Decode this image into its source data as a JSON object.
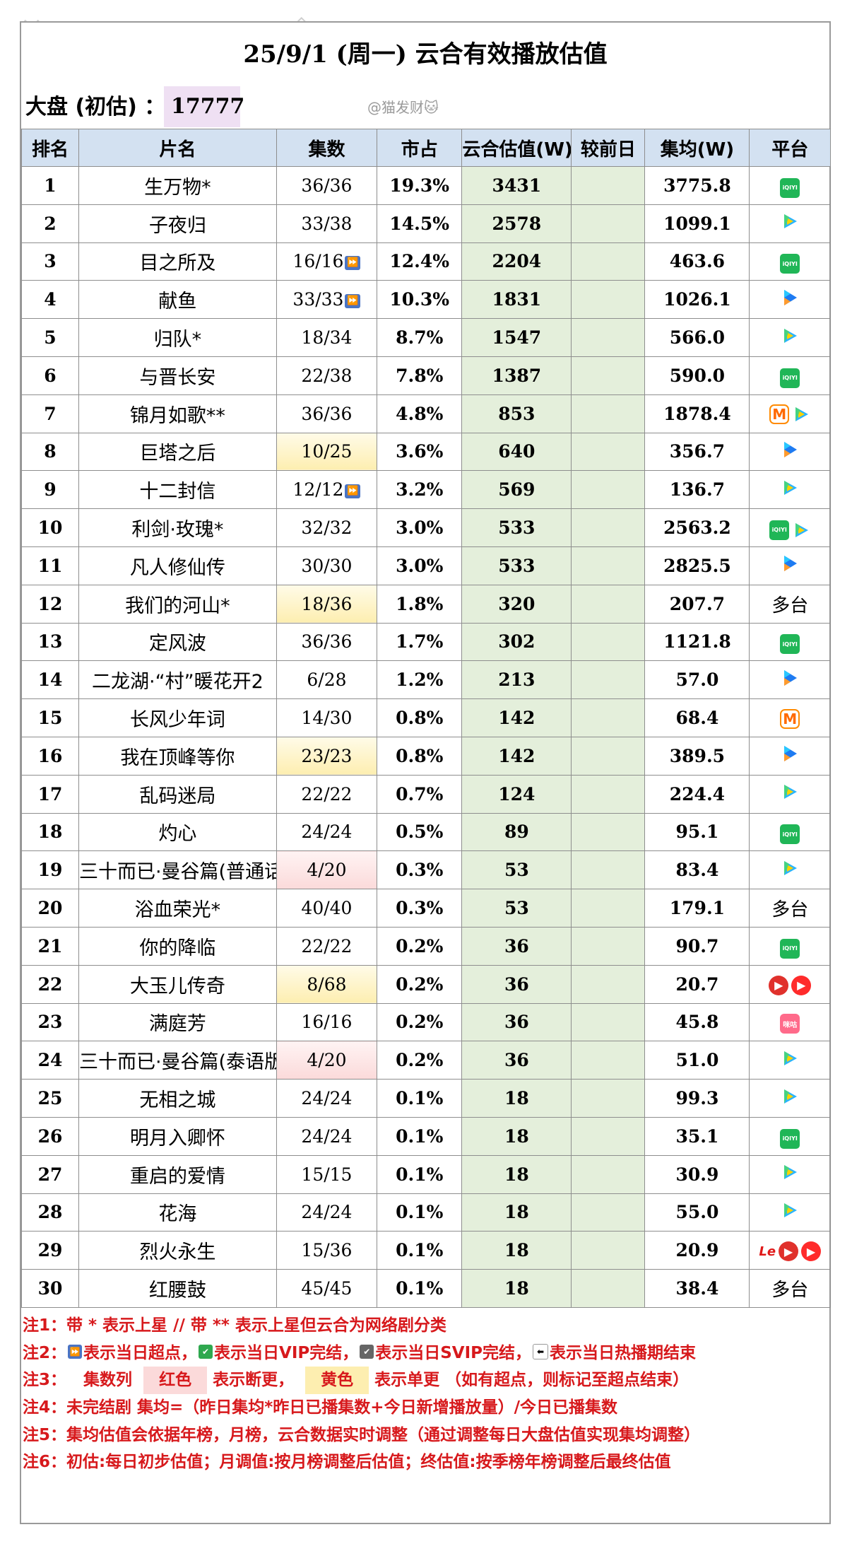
{
  "title": "25/9/1 (周一) 云合有效播放估值",
  "dapan": {
    "label": "大盘 (初估) ：",
    "value": "17777"
  },
  "watermark": "@猫发财🐱",
  "headers": [
    "排名",
    "片名",
    "集数",
    "市占",
    "云合估值(W)",
    "较前日",
    "集均(W)",
    "平台"
  ],
  "rows": [
    {
      "rank": "1",
      "name": "生万物*",
      "eps": "36/36",
      "share": "19.3%",
      "est": "3431",
      "avg": "3775.8",
      "platforms": [
        "iqiyi"
      ]
    },
    {
      "rank": "2",
      "name": "子夜归",
      "eps": "33/38",
      "share": "14.5%",
      "est": "2578",
      "avg": "1099.1",
      "platforms": [
        "tencent"
      ]
    },
    {
      "rank": "3",
      "name": "目之所及",
      "eps": "16/16",
      "ff": true,
      "share": "12.4%",
      "est": "2204",
      "avg": "463.6",
      "platforms": [
        "iqiyi"
      ]
    },
    {
      "rank": "4",
      "name": "献鱼",
      "eps": "33/33",
      "ff": true,
      "share": "10.3%",
      "est": "1831",
      "avg": "1026.1",
      "platforms": [
        "youku"
      ]
    },
    {
      "rank": "5",
      "name": "归队*",
      "eps": "18/34",
      "share": "8.7%",
      "est": "1547",
      "avg": "566.0",
      "platforms": [
        "tencent"
      ]
    },
    {
      "rank": "6",
      "name": "与晋长安",
      "eps": "22/38",
      "share": "7.8%",
      "est": "1387",
      "avg": "590.0",
      "platforms": [
        "iqiyi"
      ]
    },
    {
      "rank": "7",
      "name": "锦月如歌**",
      "eps": "36/36",
      "share": "4.8%",
      "est": "853",
      "avg": "1878.4",
      "platforms": [
        "mango",
        "tencent"
      ]
    },
    {
      "rank": "8",
      "name": "巨塔之后",
      "eps": "10/25",
      "eps_color": "yellow",
      "share": "3.6%",
      "est": "640",
      "avg": "356.7",
      "platforms": [
        "youku"
      ]
    },
    {
      "rank": "9",
      "name": "十二封信",
      "eps": "12/12",
      "ff": true,
      "share": "3.2%",
      "est": "569",
      "avg": "136.7",
      "platforms": [
        "tencent"
      ]
    },
    {
      "rank": "10",
      "name": "利剑·玫瑰*",
      "eps": "32/32",
      "share": "3.0%",
      "est": "533",
      "avg": "2563.2",
      "platforms": [
        "iqiyi",
        "tencent"
      ]
    },
    {
      "rank": "11",
      "name": "凡人修仙传",
      "eps": "30/30",
      "share": "3.0%",
      "est": "533",
      "avg": "2825.5",
      "platforms": [
        "youku"
      ]
    },
    {
      "rank": "12",
      "name": "我们的河山*",
      "eps": "18/36",
      "eps_color": "yellow",
      "share": "1.8%",
      "est": "320",
      "avg": "207.7",
      "platforms": [
        "multi"
      ]
    },
    {
      "rank": "13",
      "name": "定风波",
      "eps": "36/36",
      "share": "1.7%",
      "est": "302",
      "avg": "1121.8",
      "platforms": [
        "iqiyi"
      ]
    },
    {
      "rank": "14",
      "name": "二龙湖·“村”暖花开2",
      "eps": "6/28",
      "share": "1.2%",
      "est": "213",
      "avg": "57.0",
      "platforms": [
        "youku"
      ]
    },
    {
      "rank": "15",
      "name": "长风少年词",
      "eps": "14/30",
      "share": "0.8%",
      "est": "142",
      "avg": "68.4",
      "platforms": [
        "mango"
      ]
    },
    {
      "rank": "16",
      "name": "我在顶峰等你",
      "eps": "23/23",
      "eps_color": "yellow",
      "share": "0.8%",
      "est": "142",
      "avg": "389.5",
      "platforms": [
        "youku"
      ]
    },
    {
      "rank": "17",
      "name": "乱码迷局",
      "eps": "22/22",
      "share": "0.7%",
      "est": "124",
      "avg": "224.4",
      "platforms": [
        "tencent"
      ]
    },
    {
      "rank": "18",
      "name": "灼心",
      "eps": "24/24",
      "share": "0.5%",
      "est": "89",
      "avg": "95.1",
      "platforms": [
        "iqiyi"
      ]
    },
    {
      "rank": "19",
      "name": "三十而已·曼谷篇(普通话版",
      "eps": "4/20",
      "eps_color": "red",
      "share": "0.3%",
      "est": "53",
      "avg": "83.4",
      "platforms": [
        "tencent"
      ]
    },
    {
      "rank": "20",
      "name": "浴血荣光*",
      "eps": "40/40",
      "share": "0.3%",
      "est": "53",
      "avg": "179.1",
      "platforms": [
        "multi"
      ]
    },
    {
      "rank": "21",
      "name": "你的降临",
      "eps": "22/22",
      "share": "0.2%",
      "est": "36",
      "avg": "90.7",
      "platforms": [
        "iqiyi"
      ]
    },
    {
      "rank": "22",
      "name": "大玉儿传奇",
      "eps": "8/68",
      "eps_color": "yellow",
      "share": "0.2%",
      "est": "36",
      "avg": "20.7",
      "platforms": [
        "xigua",
        "xigua2"
      ]
    },
    {
      "rank": "23",
      "name": "满庭芳",
      "eps": "16/16",
      "share": "0.2%",
      "est": "36",
      "avg": "45.8",
      "platforms": [
        "migu"
      ]
    },
    {
      "rank": "24",
      "name": "三十而已·曼谷篇(泰语版)",
      "eps": "4/20",
      "eps_color": "red",
      "share": "0.2%",
      "est": "36",
      "avg": "51.0",
      "platforms": [
        "tencent"
      ]
    },
    {
      "rank": "25",
      "name": "无相之城",
      "eps": "24/24",
      "share": "0.1%",
      "est": "18",
      "avg": "99.3",
      "platforms": [
        "tencent"
      ]
    },
    {
      "rank": "26",
      "name": "明月入卿怀",
      "eps": "24/24",
      "share": "0.1%",
      "est": "18",
      "avg": "35.1",
      "platforms": [
        "iqiyi"
      ]
    },
    {
      "rank": "27",
      "name": "重启的爱情",
      "eps": "15/15",
      "share": "0.1%",
      "est": "18",
      "avg": "30.9",
      "platforms": [
        "tencent"
      ]
    },
    {
      "rank": "28",
      "name": "花海",
      "eps": "24/24",
      "share": "0.1%",
      "est": "18",
      "avg": "55.0",
      "platforms": [
        "tencent"
      ]
    },
    {
      "rank": "29",
      "name": "烈火永生",
      "eps": "15/36",
      "share": "0.1%",
      "est": "18",
      "avg": "20.9",
      "platforms": [
        "le",
        "xigua",
        "xigua2"
      ]
    },
    {
      "rank": "30",
      "name": "红腰鼓",
      "eps": "45/45",
      "share": "0.1%",
      "est": "18",
      "avg": "38.4",
      "platforms": [
        "multi"
      ]
    }
  ],
  "platform_labels": {
    "multi": "多台",
    "iqiyi": "iQIYI",
    "mango": "M",
    "le": "Le",
    "migu": "咪咕"
  },
  "notes": {
    "n1": "注1：带 * 表示上星 // 带 ** 表示上星但云合为网络剧分类",
    "n2_prefix": "注2：",
    "n2_a": "表示当日超点，",
    "n2_b": "表示当日VIP完结，",
    "n2_c": "表示当日SVIP完结，",
    "n2_d": "表示当日热播期结束",
    "n3_prefix": "注3：",
    "n3_a": "集数列",
    "n3_red": "红色",
    "n3_b": "表示断更，",
    "n3_yellow": "黄色",
    "n3_c": "表示单更 （如有超点，则标记至超点结束）",
    "n4": "注4：未完结剧 集均=（昨日集均*昨日已播集数+今日新增播放量）/今日已播集数",
    "n5": "注5：集均估值会依据年榜，月榜，云合数据实时调整（通过调整每日大盘估值实现集均调整）",
    "n6": "注6：初估:每日初步估值；月调值:按月榜调整后估值；终估值:按季榜年榜调整后最终估值"
  },
  "colors": {
    "header_bg": "#d3e1f1",
    "est_bg": "#e4efdb",
    "note_red": "#d7191c",
    "yellow": "#fdeeb0",
    "red": "#fbdada"
  }
}
